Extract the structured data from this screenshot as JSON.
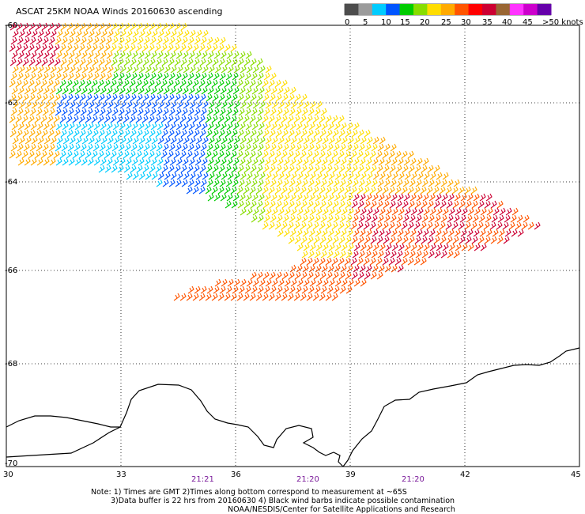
{
  "title": "ASCAT 25KM NOAA Winds 20160630 ascending",
  "legend": {
    "colors": [
      "#4d4d4d",
      "#9b9b9b",
      "#00ccff",
      "#0055ff",
      "#00cc00",
      "#88dd00",
      "#ffdd00",
      "#ffaa00",
      "#ff5500",
      "#ff0000",
      "#cc0033",
      "#996633",
      "#ff33ff",
      "#cc00cc",
      "#6600aa"
    ],
    "labels": [
      "0",
      "5",
      "10",
      "15",
      "20",
      "25",
      "30",
      "35",
      "40",
      "45",
      ">50 knots"
    ]
  },
  "axes": {
    "lat_labels": [
      "-60",
      "-62",
      "-64",
      "-66",
      "-68",
      "-70"
    ],
    "lon_labels": [
      "30",
      "33",
      "36",
      "39",
      "42",
      "45"
    ]
  },
  "times": [
    "21:21",
    "21:20",
    "21:20"
  ],
  "notes": [
    "Note: 1) Times are GMT 2)Times along bottom correspond to measurement at ~65S",
    "3)Data buffer is 22 hrs from 20160630 4) Black wind barbs indicate possible contamination",
    "NOAA/NESDIS/Center for Satellite Applications and Research"
  ]
}
